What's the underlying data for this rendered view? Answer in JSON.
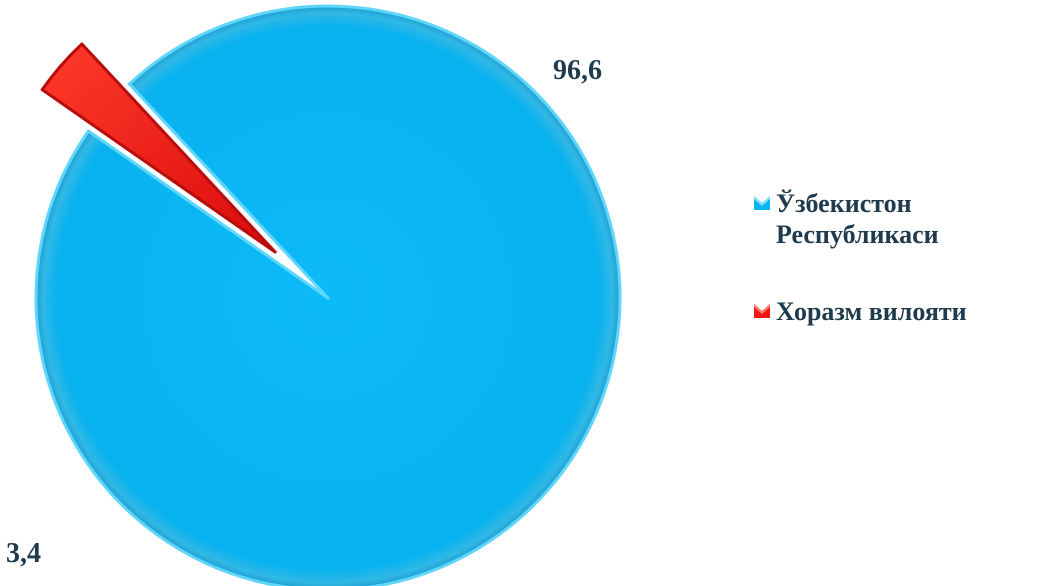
{
  "chart_data": {
    "type": "pie",
    "title": "",
    "categories": [
      "Ўзбекистон Республикаси",
      "Хоразм вилояти"
    ],
    "values": [
      96.6,
      3.4
    ],
    "value_labels": [
      "96,6",
      "3,4"
    ],
    "colors": [
      "#0ab4f2",
      "#f01414"
    ],
    "legend_position": "right",
    "exploded_slice": 1
  },
  "legend": {
    "items": [
      {
        "line1": "Ўзбекистон",
        "line2": "Республикаси"
      },
      {
        "line1": "Хоразм вилояти",
        "line2": ""
      }
    ]
  }
}
